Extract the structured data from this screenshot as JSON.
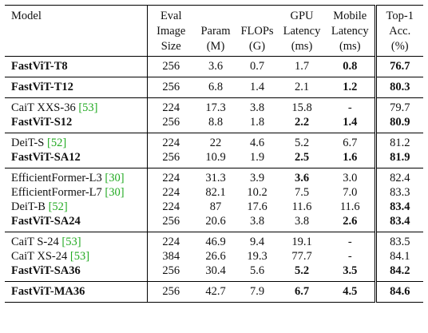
{
  "headers": {
    "model": "Model",
    "eval": [
      "Eval",
      "Image",
      "Size"
    ],
    "param": [
      "Param",
      "(M)"
    ],
    "flops": [
      "FLOPs",
      "(G)"
    ],
    "gpu": [
      "GPU",
      "Latency",
      "(ms)"
    ],
    "mobile": [
      "Mobile",
      "Latency",
      "(ms)"
    ],
    "top1": [
      "Top-1",
      "Acc.",
      "(%)"
    ]
  },
  "groups": [
    [
      {
        "model": "FastViT-T8",
        "cite": "",
        "bold": true,
        "size": "256",
        "param": "3.6",
        "flops": "0.7",
        "gpu": "1.7",
        "gpu_bold": false,
        "mobile": "0.8",
        "mobile_bold": true,
        "top1": "76.7",
        "top1_bold": true
      }
    ],
    [
      {
        "model": "FastViT-T12",
        "cite": "",
        "bold": true,
        "size": "256",
        "param": "6.8",
        "flops": "1.4",
        "gpu": "2.1",
        "gpu_bold": false,
        "mobile": "1.2",
        "mobile_bold": true,
        "top1": "80.3",
        "top1_bold": true
      }
    ],
    [
      {
        "model": "CaiT XXS-36 ",
        "cite": "[53]",
        "bold": false,
        "size": "224",
        "param": "17.3",
        "flops": "3.8",
        "gpu": "15.8",
        "gpu_bold": false,
        "mobile": "-",
        "mobile_bold": false,
        "top1": "79.7",
        "top1_bold": false
      },
      {
        "model": "FastViT-S12",
        "cite": "",
        "bold": true,
        "size": "256",
        "param": "8.8",
        "flops": "1.8",
        "gpu": "2.2",
        "gpu_bold": true,
        "mobile": "1.4",
        "mobile_bold": true,
        "top1": "80.9",
        "top1_bold": true
      }
    ],
    [
      {
        "model": "DeiT-S ",
        "cite": "[52]",
        "bold": false,
        "size": "224",
        "param": "22",
        "flops": "4.6",
        "gpu": "5.2",
        "gpu_bold": false,
        "mobile": "6.7",
        "mobile_bold": false,
        "top1": "81.2",
        "top1_bold": false
      },
      {
        "model": "FastViT-SA12",
        "cite": "",
        "bold": true,
        "size": "256",
        "param": "10.9",
        "flops": "1.9",
        "gpu": "2.5",
        "gpu_bold": true,
        "mobile": "1.6",
        "mobile_bold": true,
        "top1": "81.9",
        "top1_bold": true
      }
    ],
    [
      {
        "model": "EfficientFormer-L3 ",
        "cite": "[30]",
        "bold": false,
        "size": "224",
        "param": "31.3",
        "flops": "3.9",
        "gpu": "3.6",
        "gpu_bold": true,
        "mobile": "3.0",
        "mobile_bold": false,
        "top1": "82.4",
        "top1_bold": false
      },
      {
        "model": "EfficientFormer-L7 ",
        "cite": "[30]",
        "bold": false,
        "size": "224",
        "param": "82.1",
        "flops": "10.2",
        "gpu": "7.5",
        "gpu_bold": false,
        "mobile": "7.0",
        "mobile_bold": false,
        "top1": "83.3",
        "top1_bold": false
      },
      {
        "model": "DeiT-B ",
        "cite": "[52]",
        "bold": false,
        "size": "224",
        "param": "87",
        "flops": "17.6",
        "gpu": "11.6",
        "gpu_bold": false,
        "mobile": "11.6",
        "mobile_bold": false,
        "top1": "83.4",
        "top1_bold": true
      },
      {
        "model": "FastViT-SA24",
        "cite": "",
        "bold": true,
        "size": "256",
        "param": "20.6",
        "flops": "3.8",
        "gpu": "3.8",
        "gpu_bold": false,
        "mobile": "2.6",
        "mobile_bold": true,
        "top1": "83.4",
        "top1_bold": true
      }
    ],
    [
      {
        "model": "CaiT S-24 ",
        "cite": "[53]",
        "bold": false,
        "size": "224",
        "param": "46.9",
        "flops": "9.4",
        "gpu": "19.1",
        "gpu_bold": false,
        "mobile": "-",
        "mobile_bold": false,
        "top1": "83.5",
        "top1_bold": false
      },
      {
        "model": "CaiT XS-24 ",
        "cite": "[53]",
        "bold": false,
        "size": "384",
        "param": "26.6",
        "flops": "19.3",
        "gpu": "77.7",
        "gpu_bold": false,
        "mobile": "-",
        "mobile_bold": false,
        "top1": "84.1",
        "top1_bold": false
      },
      {
        "model": "FastViT-SA36",
        "cite": "",
        "bold": true,
        "size": "256",
        "param": "30.4",
        "flops": "5.6",
        "gpu": "5.2",
        "gpu_bold": true,
        "mobile": "3.5",
        "mobile_bold": true,
        "top1": "84.2",
        "top1_bold": true
      }
    ],
    [
      {
        "model": "FastViT-MA36",
        "cite": "",
        "bold": true,
        "size": "256",
        "param": "42.7",
        "flops": "7.9",
        "gpu": "6.7",
        "gpu_bold": true,
        "mobile": "4.5",
        "mobile_bold": true,
        "top1": "84.6",
        "top1_bold": true
      }
    ]
  ]
}
